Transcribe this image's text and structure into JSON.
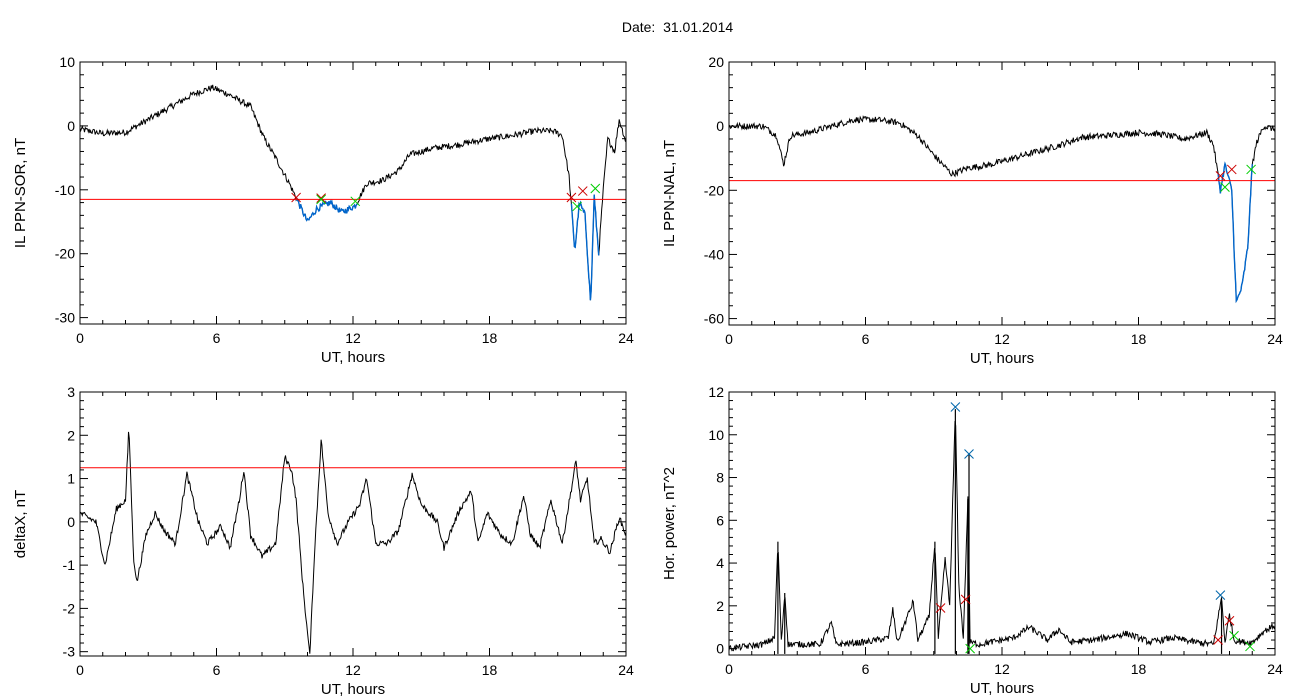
{
  "header": {
    "title": "Date:  31.01.2014"
  },
  "colors": {
    "line": "#000000",
    "threshold": "#ff0000",
    "highlight": "#0066cc",
    "mark_start": "#cc0000",
    "mark_end": "#00cc00",
    "mark_peak": "#0066aa"
  },
  "chart_data": [
    {
      "type": "line",
      "xlabel": "UT, hours",
      "ylabel": "IL PPN-SOR, nT",
      "xlim": [
        0,
        24
      ],
      "ylim": [
        -31,
        10
      ],
      "xticks": [
        0,
        6,
        12,
        18,
        24
      ],
      "yticks": [
        -30,
        -20,
        -10,
        0,
        10
      ],
      "threshold": -11.5,
      "anchors": [
        [
          0,
          -0.5
        ],
        [
          1,
          -1.2
        ],
        [
          2,
          -1
        ],
        [
          3,
          1
        ],
        [
          4,
          3
        ],
        [
          5,
          5
        ],
        [
          5.8,
          6
        ],
        [
          6.5,
          5
        ],
        [
          7.5,
          3
        ],
        [
          8.1,
          -2
        ],
        [
          8.6,
          -5
        ],
        [
          9.2,
          -9
        ],
        [
          9.6,
          -12
        ],
        [
          10.0,
          -15
        ],
        [
          10.4,
          -13
        ],
        [
          11,
          -12
        ],
        [
          11.5,
          -13.5
        ],
        [
          12.1,
          -12.5
        ],
        [
          12.6,
          -9
        ],
        [
          13.3,
          -8.5
        ],
        [
          14,
          -7
        ],
        [
          14.5,
          -4.5
        ],
        [
          15.5,
          -3.5
        ],
        [
          16.5,
          -3
        ],
        [
          18,
          -2
        ],
        [
          19,
          -1.5
        ],
        [
          20,
          -0.8
        ],
        [
          20.8,
          -0.8
        ],
        [
          21.2,
          -1.5
        ],
        [
          21.5,
          -8
        ],
        [
          21.75,
          -19.5
        ],
        [
          21.95,
          -12
        ],
        [
          22.2,
          -14
        ],
        [
          22.45,
          -28
        ],
        [
          22.6,
          -11
        ],
        [
          22.8,
          -20
        ],
        [
          23.0,
          -10
        ],
        [
          23.2,
          -2
        ],
        [
          23.5,
          -4
        ],
        [
          23.7,
          1
        ],
        [
          24,
          -2.5
        ]
      ],
      "highlight_ranges": [
        [
          9.5,
          12.2
        ],
        [
          21.6,
          22.8
        ]
      ],
      "marks": [
        {
          "x": 9.5,
          "y": -11.2,
          "color": "start"
        },
        {
          "x": 10.6,
          "y": -11.3,
          "color": "start"
        },
        {
          "x": 10.6,
          "y": -11.5,
          "color": "end"
        },
        {
          "x": 12.1,
          "y": -11.8,
          "color": "end"
        },
        {
          "x": 21.6,
          "y": -11.2,
          "color": "start"
        },
        {
          "x": 22.1,
          "y": -10.2,
          "color": "start"
        },
        {
          "x": 21.85,
          "y": -12.6,
          "color": "end"
        },
        {
          "x": 22.65,
          "y": -9.8,
          "color": "end"
        }
      ]
    },
    {
      "type": "line",
      "xlabel": "UT, hours",
      "ylabel": "IL PPN-NAL, nT",
      "xlim": [
        0,
        24
      ],
      "ylim": [
        -62,
        20
      ],
      "xticks": [
        0,
        6,
        12,
        18,
        24
      ],
      "yticks": [
        -60,
        -40,
        -20,
        0,
        20
      ],
      "threshold": -17,
      "anchors": [
        [
          0,
          0
        ],
        [
          1.5,
          0
        ],
        [
          2.1,
          -3
        ],
        [
          2.4,
          -12
        ],
        [
          2.7,
          -3
        ],
        [
          3.5,
          -2
        ],
        [
          4.5,
          0
        ],
        [
          5.5,
          2
        ],
        [
          6.5,
          2
        ],
        [
          7.5,
          1
        ],
        [
          8.3,
          -3
        ],
        [
          9.0,
          -9
        ],
        [
          9.8,
          -15
        ],
        [
          10.5,
          -13
        ],
        [
          11.5,
          -12
        ],
        [
          12.5,
          -10
        ],
        [
          13.5,
          -8
        ],
        [
          14.5,
          -6
        ],
        [
          15.5,
          -3.5
        ],
        [
          16.5,
          -3
        ],
        [
          18,
          -2
        ],
        [
          19,
          -2.5
        ],
        [
          20,
          -4
        ],
        [
          20.5,
          -3
        ],
        [
          21.0,
          -2
        ],
        [
          21.3,
          -6
        ],
        [
          21.6,
          -20
        ],
        [
          21.8,
          -12
        ],
        [
          22.1,
          -20
        ],
        [
          22.3,
          -55
        ],
        [
          22.55,
          -50
        ],
        [
          22.8,
          -38
        ],
        [
          23.0,
          -12
        ],
        [
          23.2,
          -5
        ],
        [
          23.5,
          0
        ],
        [
          24,
          -1
        ]
      ],
      "highlight_ranges": [
        [
          21.5,
          23.0
        ]
      ],
      "marks": [
        {
          "x": 21.6,
          "y": -15.5,
          "color": "start"
        },
        {
          "x": 22.1,
          "y": -13.5,
          "color": "start"
        },
        {
          "x": 21.8,
          "y": -19.0,
          "color": "end"
        },
        {
          "x": 22.95,
          "y": -13.5,
          "color": "end"
        }
      ]
    },
    {
      "type": "line",
      "xlabel": "UT, hours",
      "ylabel": "deltaX, nT",
      "xlim": [
        0,
        24
      ],
      "ylim": [
        -3.1,
        3
      ],
      "xticks": [
        0,
        6,
        12,
        18,
        24
      ],
      "yticks": [
        -3,
        -2,
        -1,
        0,
        1,
        2,
        3
      ],
      "threshold": 1.25,
      "anchors": [
        [
          0,
          0.2
        ],
        [
          0.7,
          0
        ],
        [
          1.1,
          -1
        ],
        [
          1.6,
          0.3
        ],
        [
          2,
          0.5
        ],
        [
          2.15,
          2.2
        ],
        [
          2.35,
          -0.8
        ],
        [
          2.5,
          -1.4
        ],
        [
          2.9,
          -0.3
        ],
        [
          3.3,
          0.2
        ],
        [
          3.7,
          -0.2
        ],
        [
          4.2,
          -0.5
        ],
        [
          4.7,
          1.1
        ],
        [
          5.2,
          0
        ],
        [
          5.6,
          -0.5
        ],
        [
          6.2,
          -0.1
        ],
        [
          6.6,
          -0.6
        ],
        [
          7,
          0.5
        ],
        [
          7.2,
          1.2
        ],
        [
          7.5,
          -0.3
        ],
        [
          8,
          -0.8
        ],
        [
          8.6,
          -0.5
        ],
        [
          9,
          1.5
        ],
        [
          9.3,
          1.2
        ],
        [
          9.5,
          0.5
        ],
        [
          9.8,
          -1.5
        ],
        [
          10.1,
          -3.1
        ],
        [
          10.3,
          -0.8
        ],
        [
          10.6,
          1.9
        ],
        [
          10.9,
          0.2
        ],
        [
          11.3,
          -0.5
        ],
        [
          11.8,
          0
        ],
        [
          12.3,
          0.4
        ],
        [
          12.6,
          1.0
        ],
        [
          13,
          -0.5
        ],
        [
          13.5,
          -0.5
        ],
        [
          14,
          -0.2
        ],
        [
          14.6,
          1.1
        ],
        [
          15,
          0.4
        ],
        [
          15.7,
          0
        ],
        [
          16,
          -0.6
        ],
        [
          16.7,
          0.3
        ],
        [
          17.2,
          0.7
        ],
        [
          17.5,
          -0.5
        ],
        [
          17.9,
          0.2
        ],
        [
          18.5,
          -0.3
        ],
        [
          19,
          -0.5
        ],
        [
          19.5,
          0.6
        ],
        [
          19.8,
          -0.3
        ],
        [
          20.2,
          -0.6
        ],
        [
          20.7,
          0.5
        ],
        [
          21.2,
          -0.5
        ],
        [
          21.8,
          1.4
        ],
        [
          22.0,
          0.5
        ],
        [
          22.3,
          1.0
        ],
        [
          22.6,
          -0.5
        ],
        [
          22.9,
          -0.4
        ],
        [
          23.3,
          -0.7
        ],
        [
          23.7,
          0.1
        ],
        [
          24,
          -0.3
        ]
      ],
      "highlight_ranges": [],
      "marks": []
    },
    {
      "type": "line",
      "xlabel": "UT, hours",
      "ylabel": "Hor. power, nT^2",
      "xlim": [
        0,
        24
      ],
      "ylim": [
        -0.3,
        12
      ],
      "xticks": [
        0,
        6,
        12,
        18,
        24
      ],
      "yticks": [
        0,
        2,
        4,
        6,
        8,
        10,
        12
      ],
      "threshold": null,
      "anchors": [
        [
          0,
          0
        ],
        [
          1.5,
          0.2
        ],
        [
          2,
          0.5
        ],
        [
          2.15,
          5.0
        ],
        [
          2.3,
          0.3
        ],
        [
          2.45,
          2.6
        ],
        [
          2.6,
          0.2
        ],
        [
          4,
          0.2
        ],
        [
          4.5,
          1.2
        ],
        [
          4.7,
          0.2
        ],
        [
          6,
          0.3
        ],
        [
          7,
          0.5
        ],
        [
          7.2,
          1.8
        ],
        [
          7.4,
          0.3
        ],
        [
          8.1,
          2.2
        ],
        [
          8.3,
          0.4
        ],
        [
          8.8,
          1.5
        ],
        [
          9.05,
          5.0
        ],
        [
          9.2,
          0.5
        ],
        [
          9.5,
          4.2
        ],
        [
          9.7,
          2.0
        ],
        [
          9.95,
          11.2
        ],
        [
          10.1,
          3.0
        ],
        [
          10.3,
          0.5
        ],
        [
          10.5,
          7.0
        ],
        [
          10.6,
          0.3
        ],
        [
          11,
          0.2
        ],
        [
          12.5,
          0.5
        ],
        [
          13.2,
          1.0
        ],
        [
          14,
          0.4
        ],
        [
          14.5,
          0.9
        ],
        [
          15,
          0.3
        ],
        [
          16,
          0.4
        ],
        [
          17.5,
          0.7
        ],
        [
          18.5,
          0.3
        ],
        [
          19.5,
          0.5
        ],
        [
          20.5,
          0.3
        ],
        [
          21.3,
          0.2
        ],
        [
          21.65,
          2.4
        ],
        [
          21.8,
          0.3
        ],
        [
          22,
          1.6
        ],
        [
          22.2,
          0.4
        ],
        [
          22.6,
          0.3
        ],
        [
          23,
          0.3
        ],
        [
          23.5,
          0.8
        ],
        [
          24,
          1.1
        ]
      ],
      "spikes": [
        [
          2.15,
          5.0
        ],
        [
          2.45,
          2.6
        ],
        [
          9.05,
          5.0
        ],
        [
          9.95,
          11.2
        ],
        [
          10.5,
          7.0
        ],
        [
          10.55,
          9.1
        ],
        [
          21.65,
          2.4
        ]
      ],
      "highlight_ranges": [],
      "marks": [
        {
          "x": 9.95,
          "y": 11.3,
          "color": "peak"
        },
        {
          "x": 10.55,
          "y": 9.1,
          "color": "peak"
        },
        {
          "x": 21.6,
          "y": 2.5,
          "color": "peak"
        },
        {
          "x": 9.3,
          "y": 1.9,
          "color": "start"
        },
        {
          "x": 10.4,
          "y": 2.3,
          "color": "start"
        },
        {
          "x": 21.5,
          "y": 0.4,
          "color": "start"
        },
        {
          "x": 22.0,
          "y": 1.3,
          "color": "start"
        },
        {
          "x": 10.6,
          "y": 0.0,
          "color": "end"
        },
        {
          "x": 22.2,
          "y": 0.6,
          "color": "end"
        },
        {
          "x": 22.9,
          "y": 0.1,
          "color": "end"
        }
      ]
    }
  ]
}
